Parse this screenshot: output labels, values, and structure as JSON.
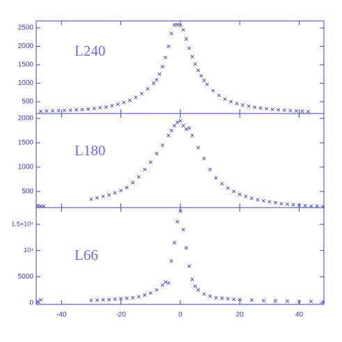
{
  "chart_data": [
    {
      "type": "scatter",
      "annotation": "L240",
      "color": "#3b3bdd",
      "xlim": [
        -48.5,
        48.3
      ],
      "ylim": [
        180,
        2690
      ],
      "yticks": [
        500,
        1000,
        1500,
        2000,
        2500
      ],
      "x": [
        -47,
        -45,
        -43,
        -41,
        -39,
        -37,
        -35,
        -33,
        -31,
        -29,
        -27,
        -25,
        -23,
        -21,
        -19,
        -17,
        -15,
        -13,
        -11,
        -9,
        -8,
        -7,
        -6,
        -5,
        -4,
        -3,
        -2,
        -1,
        0,
        1,
        2,
        3,
        4,
        5,
        6,
        7,
        8,
        9,
        11,
        13,
        15,
        17,
        19,
        21,
        23,
        25,
        27,
        29,
        31,
        33,
        35,
        37,
        39,
        41,
        43
      ],
      "values": [
        240,
        250,
        255,
        260,
        265,
        270,
        280,
        290,
        300,
        320,
        340,
        360,
        390,
        430,
        480,
        540,
        620,
        720,
        850,
        1000,
        1100,
        1250,
        1450,
        1700,
        2000,
        2350,
        2580,
        2590,
        2570,
        2450,
        2200,
        1950,
        1720,
        1520,
        1350,
        1200,
        1080,
        970,
        800,
        670,
        570,
        500,
        450,
        410,
        380,
        350,
        330,
        310,
        290,
        280,
        270,
        260,
        250,
        240,
        230
      ]
    },
    {
      "type": "scatter",
      "annotation": "L180",
      "color": "#3b3bdd",
      "xlim": [
        -48.5,
        48.3
      ],
      "ylim": [
        170,
        2100
      ],
      "yticks": [
        500,
        1000,
        1500,
        2000
      ],
      "x": [
        -48,
        -47,
        -46,
        -30,
        -28,
        -26,
        -24,
        -22,
        -20,
        -18,
        -16,
        -14,
        -12,
        -10,
        -8,
        -6,
        -4,
        -3,
        -2,
        -1,
        0,
        1,
        2,
        3,
        4,
        6,
        8,
        10,
        12,
        14,
        16,
        18,
        20,
        22,
        24,
        26,
        28,
        30,
        32,
        34,
        36,
        38,
        40,
        42,
        44,
        46,
        48
      ],
      "values": [
        210,
        200,
        200,
        340,
        370,
        400,
        430,
        470,
        520,
        580,
        680,
        800,
        950,
        1100,
        1280,
        1450,
        1650,
        1750,
        1850,
        1920,
        1950,
        1850,
        1780,
        1800,
        1650,
        1400,
        1180,
        950,
        780,
        660,
        570,
        500,
        440,
        400,
        360,
        330,
        310,
        290,
        270,
        250,
        240,
        230,
        220,
        210,
        200,
        200,
        190
      ]
    },
    {
      "type": "scatter",
      "annotation": "L66",
      "color": "#3b3bdd",
      "xlim": [
        -48.5,
        48.3
      ],
      "ylim": [
        -270,
        18200
      ],
      "yticks": [
        0,
        5000,
        {
          "value": 10000,
          "label": "10⁴"
        },
        {
          "value": 15000,
          "label": "1.5×10⁴"
        }
      ],
      "xticks": [
        -40,
        -20,
        0,
        20,
        40
      ],
      "x": [
        -48,
        -47,
        -30,
        -28,
        -26,
        -24,
        -22,
        -20,
        -18,
        -16,
        -14,
        -12,
        -10,
        -8,
        -6,
        -5,
        -4,
        -3,
        -2,
        -1,
        0,
        1,
        2,
        3,
        4,
        5,
        6,
        8,
        10,
        12,
        14,
        16,
        18,
        20,
        24,
        28,
        32,
        36,
        40,
        44,
        48
      ],
      "values": [
        300,
        600,
        500,
        550,
        600,
        650,
        700,
        800,
        900,
        1000,
        1200,
        1500,
        1900,
        2500,
        3400,
        4000,
        3800,
        8000,
        11500,
        15500,
        17500,
        14000,
        10500,
        7000,
        4500,
        3200,
        2500,
        1700,
        1300,
        1000,
        900,
        800,
        700,
        650,
        550,
        450,
        400,
        350,
        300,
        300,
        250
      ]
    }
  ]
}
